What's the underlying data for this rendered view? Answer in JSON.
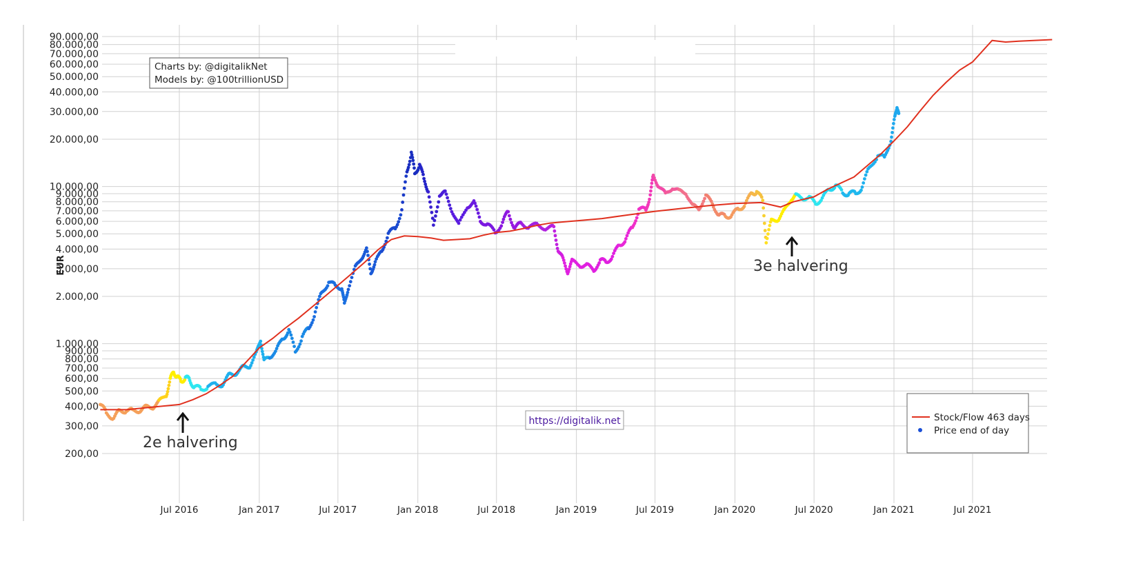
{
  "credits": {
    "line1": "Charts by: @digitalikNet",
    "line2": "Models by: @100trillionUSD"
  },
  "url": "https://digitalik.net",
  "annotations": [
    {
      "text": "2e halvering",
      "date": "2016-07-09"
    },
    {
      "text": "3e halvering",
      "date": "2020-05-11"
    }
  ],
  "chart_data": {
    "type": "scatter",
    "y_scale": "log",
    "ylabel": "EUR",
    "xlabel": "",
    "title": "",
    "xlim": [
      "2016-01-01",
      "2021-12-31"
    ],
    "ylim": [
      130,
      92000
    ],
    "grid": true,
    "legend_position": "bottom-right",
    "y_ticks": [
      {
        "value": 200,
        "label": "200,00"
      },
      {
        "value": 300,
        "label": "300,00"
      },
      {
        "value": 400,
        "label": "400,00"
      },
      {
        "value": 500,
        "label": "500,00"
      },
      {
        "value": 600,
        "label": "600,00"
      },
      {
        "value": 700,
        "label": "700,00"
      },
      {
        "value": 800,
        "label": "800,00"
      },
      {
        "value": 900,
        "label": "900,00"
      },
      {
        "value": 1000,
        "label": "1.000,00"
      },
      {
        "value": 2000,
        "label": "2.000,00"
      },
      {
        "value": 3000,
        "label": "3.000,00"
      },
      {
        "value": 4000,
        "label": "4.000,00"
      },
      {
        "value": 5000,
        "label": "5.000,00"
      },
      {
        "value": 6000,
        "label": "6.000,00"
      },
      {
        "value": 7000,
        "label": "7.000,00"
      },
      {
        "value": 8000,
        "label": "8.000,00"
      },
      {
        "value": 9000,
        "label": "9.000,00"
      },
      {
        "value": 10000,
        "label": "10.000,00"
      },
      {
        "value": 20000,
        "label": "20.000,00"
      },
      {
        "value": 30000,
        "label": "30.000,00"
      },
      {
        "value": 40000,
        "label": "40.000,00"
      },
      {
        "value": 50000,
        "label": "50.000,00"
      },
      {
        "value": 60000,
        "label": "60.000,00"
      },
      {
        "value": 70000,
        "label": "70.000,00"
      },
      {
        "value": 80000,
        "label": "80.000,00"
      },
      {
        "value": 90000,
        "label": "90.000,00"
      }
    ],
    "x_ticks": [
      {
        "date": "2016-07-01",
        "label": "Jul 2016"
      },
      {
        "date": "2017-01-01",
        "label": "Jan 2017"
      },
      {
        "date": "2017-07-01",
        "label": "Jul 2017"
      },
      {
        "date": "2018-01-01",
        "label": "Jan 2018"
      },
      {
        "date": "2018-07-01",
        "label": "Jul 2018"
      },
      {
        "date": "2019-01-01",
        "label": "Jan 2019"
      },
      {
        "date": "2019-07-01",
        "label": "Jul 2019"
      },
      {
        "date": "2020-01-01",
        "label": "Jan 2020"
      },
      {
        "date": "2020-07-01",
        "label": "Jul 2020"
      },
      {
        "date": "2021-01-01",
        "label": "Jan 2021"
      },
      {
        "date": "2021-07-01",
        "label": "Jul 2021"
      }
    ],
    "series": [
      {
        "name": "Stock/Flow 463 days",
        "kind": "line",
        "color": "#e0301e",
        "points": [
          [
            "2016-01-01",
            380
          ],
          [
            "2016-03-01",
            380
          ],
          [
            "2016-05-01",
            395
          ],
          [
            "2016-07-01",
            410
          ],
          [
            "2016-08-01",
            440
          ],
          [
            "2016-09-01",
            480
          ],
          [
            "2016-10-01",
            540
          ],
          [
            "2016-11-01",
            620
          ],
          [
            "2016-12-01",
            760
          ],
          [
            "2017-01-01",
            940
          ],
          [
            "2017-02-01",
            1080
          ],
          [
            "2017-03-01",
            1250
          ],
          [
            "2017-04-01",
            1450
          ],
          [
            "2017-05-01",
            1700
          ],
          [
            "2017-06-01",
            2000
          ],
          [
            "2017-07-01",
            2350
          ],
          [
            "2017-08-01",
            2780
          ],
          [
            "2017-09-01",
            3300
          ],
          [
            "2017-10-01",
            3950
          ],
          [
            "2017-11-01",
            4600
          ],
          [
            "2017-12-01",
            4850
          ],
          [
            "2018-01-01",
            4800
          ],
          [
            "2018-02-01",
            4700
          ],
          [
            "2018-03-01",
            4550
          ],
          [
            "2018-04-01",
            4600
          ],
          [
            "2018-05-01",
            4650
          ],
          [
            "2018-06-01",
            4900
          ],
          [
            "2018-07-01",
            5100
          ],
          [
            "2018-08-01",
            5200
          ],
          [
            "2018-09-01",
            5400
          ],
          [
            "2018-10-01",
            5650
          ],
          [
            "2018-11-01",
            5850
          ],
          [
            "2018-12-01",
            5950
          ],
          [
            "2019-01-01",
            6050
          ],
          [
            "2019-03-01",
            6250
          ],
          [
            "2019-05-01",
            6600
          ],
          [
            "2019-07-01",
            6950
          ],
          [
            "2019-09-01",
            7250
          ],
          [
            "2019-11-01",
            7550
          ],
          [
            "2020-01-01",
            7800
          ],
          [
            "2020-03-01",
            7900
          ],
          [
            "2020-04-15",
            7400
          ],
          [
            "2020-05-15",
            8000
          ],
          [
            "2020-07-01",
            8600
          ],
          [
            "2020-08-01",
            9600
          ],
          [
            "2020-10-01",
            11500
          ],
          [
            "2020-12-01",
            16000
          ],
          [
            "2021-01-01",
            19500
          ],
          [
            "2021-02-01",
            24000
          ],
          [
            "2021-03-01",
            30000
          ],
          [
            "2021-04-01",
            38000
          ],
          [
            "2021-05-01",
            46000
          ],
          [
            "2021-06-01",
            55000
          ],
          [
            "2021-07-01",
            62000
          ],
          [
            "2021-08-15",
            85000
          ],
          [
            "2021-09-15",
            83000
          ],
          [
            "2021-10-15",
            84000
          ],
          [
            "2021-12-31",
            86000
          ]
        ]
      },
      {
        "name": "Price end of day",
        "kind": "scatter",
        "color": "#1a4fd6",
        "points": [
          [
            "2016-01-01",
            410,
            "#f5a05a"
          ],
          [
            "2016-01-15",
            360,
            "#f5a05a"
          ],
          [
            "2016-02-01",
            340,
            "#f5a05a"
          ],
          [
            "2016-02-15",
            370,
            "#f5a05a"
          ],
          [
            "2016-03-01",
            380,
            "#f5a05a"
          ],
          [
            "2016-03-15",
            370,
            "#f5a05a"
          ],
          [
            "2016-04-01",
            380,
            "#f5a05a"
          ],
          [
            "2016-04-15",
            390,
            "#f5a05a"
          ],
          [
            "2016-05-01",
            400,
            "#f5a05a"
          ],
          [
            "2016-05-15",
            420,
            "#ffd21a"
          ],
          [
            "2016-06-01",
            480,
            "#ffd21a"
          ],
          [
            "2016-06-10",
            580,
            "#ffee00"
          ],
          [
            "2016-06-18",
            680,
            "#ffee00"
          ],
          [
            "2016-06-25",
            600,
            "#ffee00"
          ],
          [
            "2016-07-05",
            590,
            "#ffee00"
          ],
          [
            "2016-07-15",
            600,
            "#2ee6f0"
          ],
          [
            "2016-07-25",
            590,
            "#2ee6f0"
          ],
          [
            "2016-08-05",
            530,
            "#2ee6f0"
          ],
          [
            "2016-08-20",
            510,
            "#2ee6f0"
          ],
          [
            "2016-09-05",
            540,
            "#1fb0ee"
          ],
          [
            "2016-09-25",
            540,
            "#1fb0ee"
          ],
          [
            "2016-10-10",
            560,
            "#1fb0ee"
          ],
          [
            "2016-10-25",
            630,
            "#1fb0ee"
          ],
          [
            "2016-11-10",
            660,
            "#1fb0ee"
          ],
          [
            "2016-11-25",
            700,
            "#1fb0ee"
          ],
          [
            "2016-12-10",
            730,
            "#1fb0ee"
          ],
          [
            "2016-12-25",
            850,
            "#1fb0ee"
          ],
          [
            "2017-01-04",
            1080,
            "#1fb0ee"
          ],
          [
            "2017-01-12",
            760,
            "#1fb0ee"
          ],
          [
            "2017-01-25",
            840,
            "#1a8ae6"
          ],
          [
            "2017-02-10",
            900,
            "#1a8ae6"
          ],
          [
            "2017-02-25",
            1100,
            "#1a8ae6"
          ],
          [
            "2017-03-10",
            1200,
            "#1a8ae6"
          ],
          [
            "2017-03-25",
            900,
            "#1a8ae6"
          ],
          [
            "2017-04-10",
            1100,
            "#1a8ae6"
          ],
          [
            "2017-04-25",
            1250,
            "#1a6ee0"
          ],
          [
            "2017-05-10",
            1600,
            "#1a6ee0"
          ],
          [
            "2017-05-25",
            2100,
            "#1a6ee0"
          ],
          [
            "2017-06-10",
            2500,
            "#1a6ee0"
          ],
          [
            "2017-06-25",
            2300,
            "#1a6ee0"
          ],
          [
            "2017-07-10",
            2300,
            "#1a6ee0"
          ],
          [
            "2017-07-16",
            1750,
            "#1a6ee0"
          ],
          [
            "2017-07-25",
            2300,
            "#1a5ad8"
          ],
          [
            "2017-08-10",
            3000,
            "#1a5ad8"
          ],
          [
            "2017-08-25",
            3600,
            "#1a5ad8"
          ],
          [
            "2017-09-05",
            3900,
            "#1a5ad8"
          ],
          [
            "2017-09-15",
            2900,
            "#1a5ad8"
          ],
          [
            "2017-09-25",
            3200,
            "#1a5ad8"
          ],
          [
            "2017-10-10",
            4000,
            "#1a4ad0"
          ],
          [
            "2017-10-25",
            4900,
            "#1a4ad0"
          ],
          [
            "2017-11-10",
            5500,
            "#1a4ad0"
          ],
          [
            "2017-11-25",
            7000,
            "#1a3ac8"
          ],
          [
            "2017-12-07",
            12500,
            "#1a2ec0"
          ],
          [
            "2017-12-17",
            16500,
            "#1a2ec0"
          ],
          [
            "2017-12-25",
            12000,
            "#1a2ec0"
          ],
          [
            "2018-01-05",
            14000,
            "#2424c8"
          ],
          [
            "2018-01-15",
            11000,
            "#2424c8"
          ],
          [
            "2018-01-25",
            9500,
            "#3a20d0"
          ],
          [
            "2018-02-06",
            5500,
            "#3a20d0"
          ],
          [
            "2018-02-20",
            9000,
            "#4a1ed8"
          ],
          [
            "2018-03-05",
            9000,
            "#4a1ed8"
          ],
          [
            "2018-03-20",
            7200,
            "#5a1ce0"
          ],
          [
            "2018-04-05",
            5600,
            "#5a1ce0"
          ],
          [
            "2018-04-25",
            7600,
            "#6a1ae0"
          ],
          [
            "2018-05-10",
            7800,
            "#6a1ae0"
          ],
          [
            "2018-05-25",
            6200,
            "#7a18e0"
          ],
          [
            "2018-06-10",
            5600,
            "#7a18e0"
          ],
          [
            "2018-06-28",
            5200,
            "#8a18e0"
          ],
          [
            "2018-07-15",
            5800,
            "#8a18e0"
          ],
          [
            "2018-07-28",
            7000,
            "#9618e0"
          ],
          [
            "2018-08-12",
            5400,
            "#9618e0"
          ],
          [
            "2018-08-28",
            5800,
            "#a020e0"
          ],
          [
            "2018-09-15",
            5600,
            "#a020e0"
          ],
          [
            "2018-10-05",
            5600,
            "#b020e0"
          ],
          [
            "2018-10-25",
            5500,
            "#b020e0"
          ],
          [
            "2018-11-10",
            5400,
            "#c020e0"
          ],
          [
            "2018-11-20",
            4000,
            "#d020e0"
          ],
          [
            "2018-12-01",
            3400,
            "#e020e0"
          ],
          [
            "2018-12-12",
            2900,
            "#e020e0"
          ],
          [
            "2018-12-22",
            3300,
            "#e020e0"
          ],
          [
            "2019-01-10",
            3200,
            "#e020e0"
          ],
          [
            "2019-01-25",
            3100,
            "#e020e0"
          ],
          [
            "2019-02-10",
            3000,
            "#e020e0"
          ],
          [
            "2019-02-25",
            3300,
            "#e020e0"
          ],
          [
            "2019-03-10",
            3400,
            "#e020e0"
          ],
          [
            "2019-03-25",
            3500,
            "#e020e0"
          ],
          [
            "2019-04-10",
            4300,
            "#e828d8"
          ],
          [
            "2019-04-25",
            4600,
            "#e828d8"
          ],
          [
            "2019-05-10",
            5500,
            "#f030c8"
          ],
          [
            "2019-05-25",
            7200,
            "#f030c8"
          ],
          [
            "2019-06-10",
            7000,
            "#f238b8"
          ],
          [
            "2019-06-20",
            9000,
            "#f238b8"
          ],
          [
            "2019-06-27",
            11500,
            "#f24aa8"
          ],
          [
            "2019-07-10",
            10200,
            "#f24aa8"
          ],
          [
            "2019-07-25",
            8800,
            "#f25a9a"
          ],
          [
            "2019-08-10",
            10000,
            "#f25a9a"
          ],
          [
            "2019-08-25",
            9200,
            "#f2708c"
          ],
          [
            "2019-09-10",
            9300,
            "#f2708c"
          ],
          [
            "2019-09-25",
            7400,
            "#f27a80"
          ],
          [
            "2019-10-10",
            7400,
            "#f27a80"
          ],
          [
            "2019-10-26",
            8500,
            "#f28070"
          ],
          [
            "2019-11-10",
            8000,
            "#f28a6a"
          ],
          [
            "2019-11-25",
            6400,
            "#f28a6a"
          ],
          [
            "2019-12-10",
            6600,
            "#f59a60"
          ],
          [
            "2019-12-25",
            6500,
            "#f59a60"
          ],
          [
            "2020-01-10",
            7200,
            "#f5a858"
          ],
          [
            "2020-01-25",
            7800,
            "#f5b050"
          ],
          [
            "2020-02-10",
            9000,
            "#f5b848"
          ],
          [
            "2020-02-20",
            9400,
            "#f5c040"
          ],
          [
            "2020-03-05",
            8000,
            "#f8d030"
          ],
          [
            "2020-03-13",
            4500,
            "#ffe020"
          ],
          [
            "2020-03-25",
            6000,
            "#ffee00"
          ],
          [
            "2020-04-10",
            6300,
            "#ffee00"
          ],
          [
            "2020-04-25",
            7000,
            "#ffee00"
          ],
          [
            "2020-05-10",
            8500,
            "#ffee00"
          ],
          [
            "2020-05-20",
            8600,
            "#2ee6f0"
          ],
          [
            "2020-06-05",
            8600,
            "#2ee6f0"
          ],
          [
            "2020-06-20",
            8300,
            "#2ee6f0"
          ],
          [
            "2020-07-05",
            8000,
            "#2ee6f0"
          ],
          [
            "2020-07-20",
            8200,
            "#28d8f0"
          ],
          [
            "2020-08-05",
            9800,
            "#28d8f0"
          ],
          [
            "2020-08-20",
            10000,
            "#28d8f0"
          ],
          [
            "2020-09-05",
            9200,
            "#1fb8ee"
          ],
          [
            "2020-09-20",
            9000,
            "#1fb8ee"
          ],
          [
            "2020-10-05",
            9000,
            "#1fb8ee"
          ],
          [
            "2020-10-20",
            10000,
            "#1fb0ee"
          ],
          [
            "2020-11-05",
            13000,
            "#1fb0ee"
          ],
          [
            "2020-11-25",
            16000,
            "#1fb0ee"
          ],
          [
            "2020-12-10",
            15000,
            "#1fa8ee"
          ],
          [
            "2020-12-25",
            20000,
            "#1fa8ee"
          ],
          [
            "2021-01-03",
            27000,
            "#1fa8ee"
          ],
          [
            "2021-01-08",
            33000,
            "#1fa8ee"
          ],
          [
            "2021-01-12",
            28000,
            "#1fa8ee"
          ]
        ]
      }
    ]
  }
}
